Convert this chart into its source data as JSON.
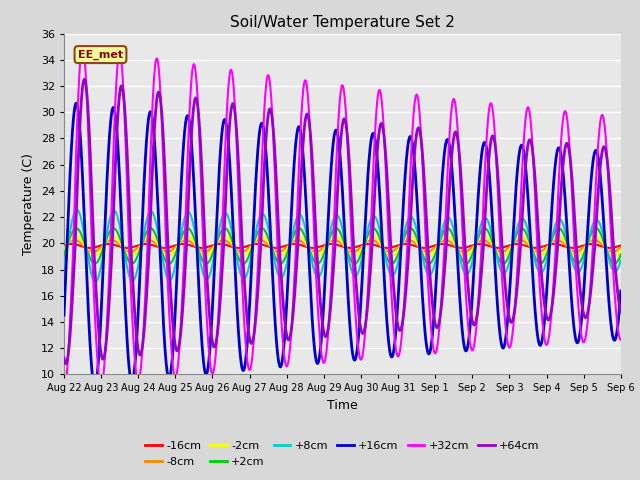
{
  "title": "Soil/Water Temperature Set 2",
  "xlabel": "Time",
  "ylabel": "Temperature (C)",
  "ylim": [
    10,
    36
  ],
  "yticks": [
    10,
    12,
    14,
    16,
    18,
    20,
    22,
    24,
    26,
    28,
    30,
    32,
    34,
    36
  ],
  "plot_bg_color": "#e8e8e8",
  "fig_bg_color": "#d8d8d8",
  "annotation_text": "EE_met",
  "annotation_box_color": "#ffff99",
  "annotation_border_color": "#8B4513",
  "annotation_text_color": "#8B0000",
  "series": [
    {
      "label": "-16cm",
      "color": "#ff0000",
      "lw": 1.5
    },
    {
      "label": "-8cm",
      "color": "#ff8800",
      "lw": 1.5
    },
    {
      "label": "-2cm",
      "color": "#ffff00",
      "lw": 1.5
    },
    {
      "label": "+2cm",
      "color": "#00cc00",
      "lw": 1.5
    },
    {
      "label": "+8cm",
      "color": "#00cccc",
      "lw": 1.5
    },
    {
      "label": "+16cm",
      "color": "#0000cc",
      "lw": 2.0
    },
    {
      "label": "+32cm",
      "color": "#ff00ff",
      "lw": 1.5
    },
    {
      "label": "+64cm",
      "color": "#9900cc",
      "lw": 2.0
    }
  ]
}
